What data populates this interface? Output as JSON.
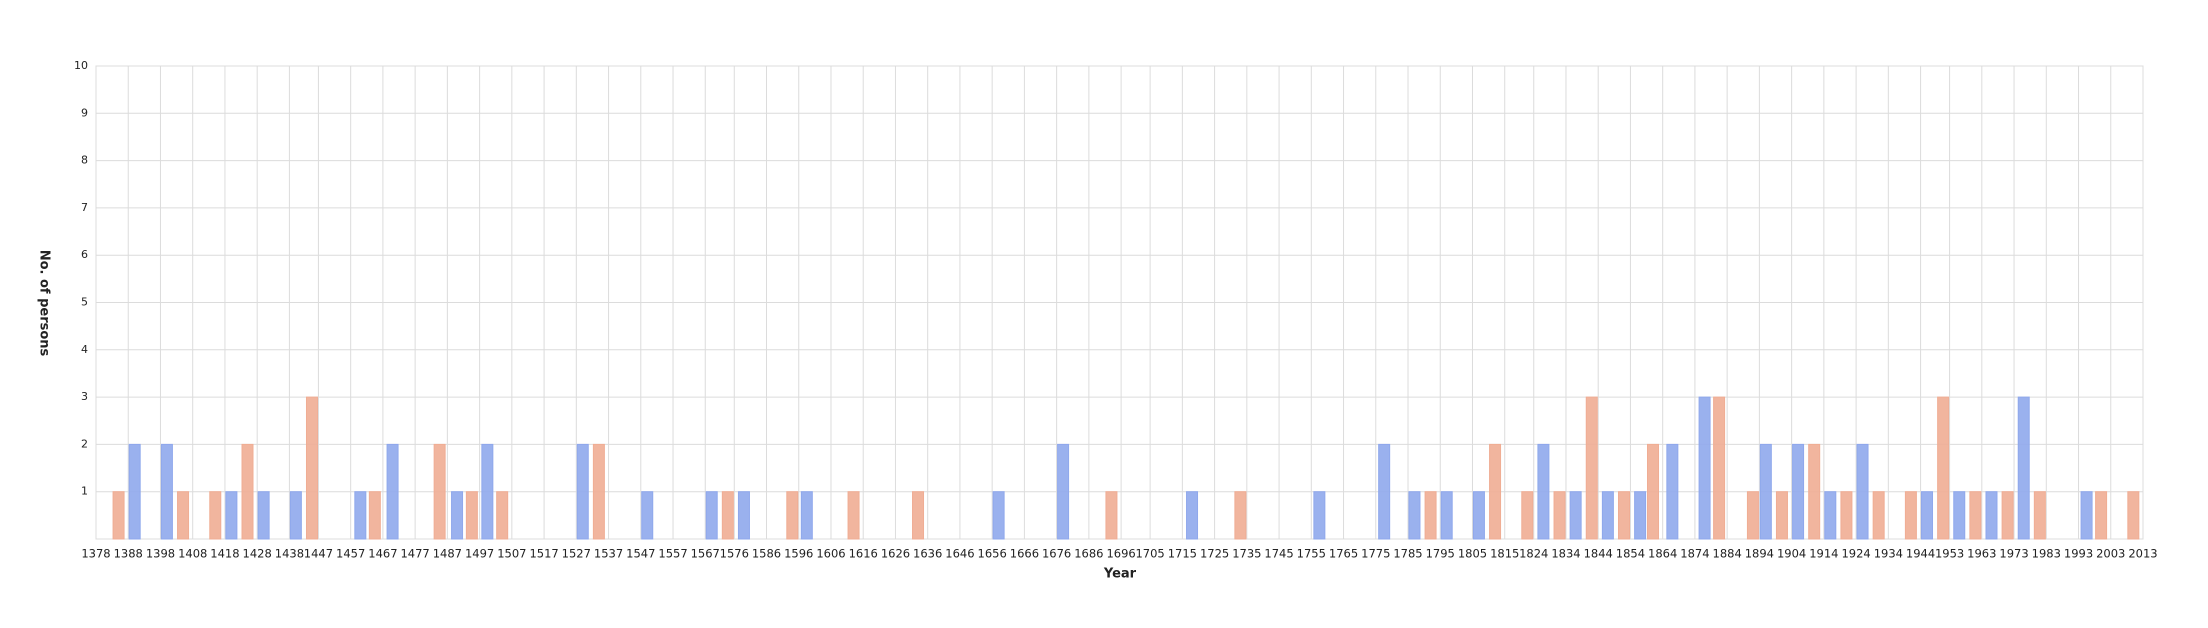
{
  "chart_data": {
    "type": "bar",
    "xlabel": "Year",
    "ylabel": "No. of persons",
    "xlim": [
      1378,
      2013
    ],
    "xticks": [
      1378,
      1388,
      1398,
      1408,
      1418,
      1428,
      1438,
      1447,
      1457,
      1467,
      1477,
      1487,
      1497,
      1507,
      1517,
      1527,
      1537,
      1547,
      1557,
      1567,
      1576,
      1586,
      1596,
      1606,
      1616,
      1626,
      1636,
      1646,
      1656,
      1666,
      1676,
      1686,
      1696,
      1705,
      1715,
      1725,
      1735,
      1745,
      1755,
      1765,
      1775,
      1785,
      1795,
      1805,
      1815,
      1824,
      1834,
      1844,
      1854,
      1864,
      1874,
      1884,
      1894,
      1904,
      1914,
      1924,
      1934,
      1944,
      1953,
      1963,
      1973,
      1983,
      1993,
      2003,
      2013
    ],
    "ylim": [
      0,
      10
    ],
    "yticks": [
      1,
      2,
      3,
      4,
      5,
      6,
      7,
      8,
      9,
      10
    ],
    "grid": true,
    "series": [
      {
        "color": "#8fa8ec",
        "x": [
          1390,
          1400,
          1420,
          1430,
          1440,
          1460,
          1470,
          1490,
          1499.4,
          1529,
          1549,
          1569,
          1579,
          1598.5,
          1658,
          1678,
          1718,
          1757.5,
          1777.6,
          1787,
          1797,
          1807,
          1827,
          1837,
          1847,
          1857,
          1867,
          1877,
          1896,
          1906,
          1916,
          1926,
          1946,
          1956,
          1966,
          1976,
          1995.5
        ],
        "values": [
          2,
          2,
          1,
          1,
          1,
          1,
          2,
          1,
          2,
          2,
          1,
          1,
          1,
          1,
          1,
          2,
          1,
          1,
          2,
          1,
          1,
          1,
          2,
          1,
          1,
          1,
          2,
          3,
          2,
          2,
          1,
          2,
          1,
          1,
          1,
          3,
          1
        ]
      },
      {
        "color": "#f0ad94",
        "x": [
          1385,
          1405,
          1415,
          1425,
          1445,
          1464.5,
          1484.6,
          1494.6,
          1504,
          1534,
          1574,
          1594,
          1613,
          1633,
          1693,
          1733,
          1792,
          1812,
          1822,
          1832,
          1842,
          1852,
          1861,
          1881.5,
          1892,
          1901,
          1911,
          1921,
          1931,
          1941,
          1951,
          1961,
          1971,
          1981,
          2000,
          2010
        ],
        "values": [
          1,
          1,
          1,
          2,
          3,
          1,
          2,
          1,
          1,
          2,
          1,
          1,
          1,
          1,
          1,
          1,
          1,
          2,
          1,
          1,
          3,
          1,
          2,
          3,
          1,
          1,
          2,
          1,
          1,
          1,
          3,
          1,
          1,
          1,
          1,
          1
        ]
      }
    ]
  }
}
